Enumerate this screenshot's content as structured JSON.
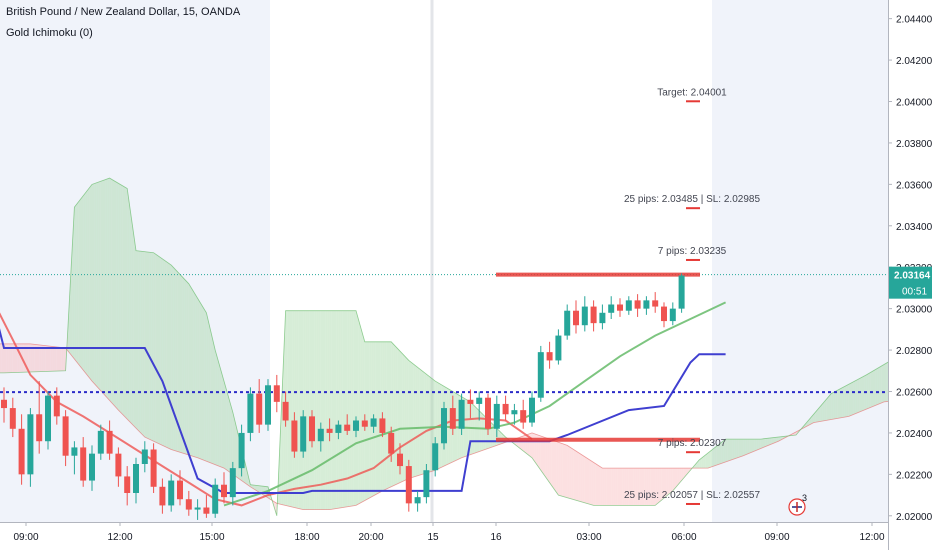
{
  "header": {
    "title": "British Pound / New Zealand Dollar, 15, OANDA",
    "indicator": "Gold Ichimoku (0)"
  },
  "colors": {
    "bull": "#26a69a",
    "bear": "#ef5350",
    "kijun": "#3f3fd0",
    "tenkan": "#ef5350",
    "chikou": "#66bb6a",
    "cloud_bull": "#a5d6a7",
    "cloud_bear": "#f8bbbd",
    "level_line": "#2b2bc8",
    "last_price_bg": "#26a69a",
    "marker_line": "#e53935",
    "session_shade": "#f0f3fa"
  },
  "price_axis": {
    "ticks": [
      "2.04400",
      "2.04200",
      "2.04000",
      "2.03800",
      "2.03600",
      "2.03400",
      "2.03200",
      "2.03000",
      "2.02800",
      "2.02600",
      "2.02400",
      "2.02200",
      "2.02000"
    ],
    "last_price": "2.03164",
    "countdown": "00:51"
  },
  "time_axis": {
    "labels": [
      "09:00",
      "12:00",
      "15:00",
      "18:00",
      "20:00",
      "15",
      "16",
      "03:00",
      "06:00",
      "09:00",
      "12:00"
    ]
  },
  "annotations": {
    "target": "Target: 2.04001",
    "pips25_up": "25 pips: 2.03485  |  SL: 2.02985",
    "pips7_up": "7 pips: 2.03235",
    "pips7_down": "7 pips: 2.02307",
    "pips25_down": "25 pips: 2.02057  |  SL: 2.02557"
  },
  "event_badge": "3",
  "chart_data": {
    "type": "candlestick",
    "timeframe": "15",
    "symbol": "GBPNZD",
    "ylim": [
      2.0197,
      2.0449
    ],
    "levels": {
      "horizontal_dotted": 2.02597,
      "last_price": 2.03164,
      "target": 2.04001,
      "pips25_up": 2.03485,
      "pips7_up": 2.03235,
      "pips7_down": 2.02307,
      "pips25_down": 2.02057,
      "signal_high": 2.03164,
      "signal_low": 2.02367
    },
    "candles": [
      [
        2.0256,
        2.0262,
        2.0245,
        2.0252
      ],
      [
        2.0252,
        2.0257,
        2.0238,
        2.0242
      ],
      [
        2.0242,
        2.0249,
        2.0215,
        2.022
      ],
      [
        2.022,
        2.0252,
        2.0214,
        2.0249
      ],
      [
        2.0249,
        2.0265,
        2.023,
        2.0236
      ],
      [
        2.0236,
        2.026,
        2.0232,
        2.0258
      ],
      [
        2.0258,
        2.0262,
        2.0244,
        2.0248
      ],
      [
        2.0248,
        2.0251,
        2.0224,
        2.0229
      ],
      [
        2.0229,
        2.0236,
        2.022,
        2.0233
      ],
      [
        2.0233,
        2.0238,
        2.0214,
        2.0217
      ],
      [
        2.0217,
        2.0234,
        2.0212,
        2.023
      ],
      [
        2.023,
        2.0244,
        2.0227,
        2.0241
      ],
      [
        2.0241,
        2.0246,
        2.0227,
        2.023
      ],
      [
        2.023,
        2.0233,
        2.0214,
        2.0219
      ],
      [
        2.0219,
        2.0224,
        2.0205,
        2.0211
      ],
      [
        2.0211,
        2.0228,
        2.0206,
        2.0225
      ],
      [
        2.0225,
        2.0236,
        2.0221,
        2.0232
      ],
      [
        2.0232,
        2.0235,
        2.0211,
        2.0214
      ],
      [
        2.0214,
        2.0218,
        2.0201,
        2.0205
      ],
      [
        2.0205,
        2.022,
        2.0202,
        2.0217
      ],
      [
        2.0217,
        2.0222,
        2.0205,
        2.0208
      ],
      [
        2.0208,
        2.0212,
        2.02,
        2.0203
      ],
      [
        2.0203,
        2.0208,
        2.0198,
        2.0204
      ],
      [
        2.0204,
        2.021,
        2.0199,
        2.0201
      ],
      [
        2.0201,
        2.0218,
        2.0199,
        2.0215
      ],
      [
        2.0215,
        2.0221,
        2.0206,
        2.0209
      ],
      [
        2.0209,
        2.0226,
        2.0205,
        2.0223
      ],
      [
        2.0223,
        2.0244,
        2.0219,
        2.024
      ],
      [
        2.024,
        2.0262,
        2.0236,
        2.0259
      ],
      [
        2.0259,
        2.0266,
        2.024,
        2.0244
      ],
      [
        2.0244,
        2.0266,
        2.0241,
        2.0263
      ],
      [
        2.0263,
        2.0268,
        2.025,
        2.0255
      ],
      [
        2.0255,
        2.026,
        2.0243,
        2.0246
      ],
      [
        2.0246,
        2.025,
        2.0228,
        2.0231
      ],
      [
        2.0231,
        2.0251,
        2.0228,
        2.0248
      ],
      [
        2.0248,
        2.0251,
        2.0233,
        2.0236
      ],
      [
        2.0236,
        2.0245,
        2.0231,
        2.0242
      ],
      [
        2.0242,
        2.0247,
        2.0236,
        2.024
      ],
      [
        2.024,
        2.0246,
        2.0237,
        2.0244
      ],
      [
        2.0244,
        2.0249,
        2.0239,
        2.0241
      ],
      [
        2.0241,
        2.0248,
        2.0238,
        2.0246
      ],
      [
        2.0246,
        2.0249,
        2.0241,
        2.0243
      ],
      [
        2.0243,
        2.0249,
        2.024,
        2.0247
      ],
      [
        2.0247,
        2.025,
        2.0238,
        2.024
      ],
      [
        2.024,
        2.0243,
        2.0226,
        2.023
      ],
      [
        2.023,
        2.0235,
        2.022,
        2.0224
      ],
      [
        2.0224,
        2.0227,
        2.0202,
        2.0206
      ],
      [
        2.0206,
        2.0212,
        2.0202,
        2.0209
      ],
      [
        2.0209,
        2.0225,
        2.0206,
        2.0222
      ],
      [
        2.0222,
        2.0238,
        2.0219,
        2.0235
      ],
      [
        2.0235,
        2.0255,
        2.0232,
        2.0252
      ],
      [
        2.0252,
        2.0258,
        2.0239,
        2.0242
      ],
      [
        2.0242,
        2.0259,
        2.0239,
        2.0256
      ],
      [
        2.0256,
        2.0261,
        2.0247,
        2.0254
      ],
      [
        2.0254,
        2.026,
        2.0246,
        2.0257
      ],
      [
        2.0257,
        2.0259,
        2.0239,
        2.0242
      ],
      [
        2.0242,
        2.0258,
        2.0238,
        2.0254
      ],
      [
        2.0254,
        2.0258,
        2.0246,
        2.0249
      ],
      [
        2.0249,
        2.0254,
        2.0244,
        2.0251
      ],
      [
        2.0251,
        2.0256,
        2.0242,
        2.0245
      ],
      [
        2.0245,
        2.026,
        2.0243,
        2.0257
      ],
      [
        2.0257,
        2.0282,
        2.0255,
        2.0279
      ],
      [
        2.0279,
        2.0284,
        2.0271,
        2.0275
      ],
      [
        2.0275,
        2.029,
        2.0273,
        2.0287
      ],
      [
        2.0287,
        2.0302,
        2.0285,
        2.0299
      ],
      [
        2.0299,
        2.0304,
        2.0288,
        2.0292
      ],
      [
        2.0292,
        2.0306,
        2.0289,
        2.0301
      ],
      [
        2.0301,
        2.0304,
        2.0289,
        2.0293
      ],
      [
        2.0293,
        2.0302,
        2.029,
        2.0298
      ],
      [
        2.0298,
        2.0306,
        2.0295,
        2.0302
      ],
      [
        2.0302,
        2.0305,
        2.0296,
        2.0299
      ],
      [
        2.0299,
        2.0306,
        2.0297,
        2.0304
      ],
      [
        2.0304,
        2.0307,
        2.0296,
        2.03
      ],
      [
        2.03,
        2.0306,
        2.0297,
        2.0304
      ],
      [
        2.0304,
        2.0308,
        2.0298,
        2.0301
      ],
      [
        2.0301,
        2.0303,
        2.0291,
        2.0294
      ],
      [
        2.0294,
        2.0303,
        2.0292,
        2.03
      ],
      [
        2.03,
        2.0317,
        2.0298,
        2.0316
      ]
    ],
    "kijun": [
      [
        -4,
        2.0331
      ],
      [
        -3,
        2.0331
      ],
      [
        0,
        2.0281
      ],
      [
        7,
        2.0281
      ],
      [
        16,
        2.0281
      ],
      [
        18,
        2.0265
      ],
      [
        22,
        2.0218
      ],
      [
        25,
        2.0211
      ],
      [
        34,
        2.0211
      ],
      [
        35,
        2.0212
      ],
      [
        52,
        2.0212
      ],
      [
        53,
        2.0236
      ],
      [
        62,
        2.0236
      ],
      [
        64,
        2.0239
      ],
      [
        71,
        2.0251
      ],
      [
        75,
        2.0253
      ],
      [
        78,
        2.0274
      ],
      [
        79,
        2.0278
      ],
      [
        82,
        2.0278
      ]
    ],
    "tenkan": [
      [
        -4,
        2.032
      ],
      [
        -2,
        2.031
      ],
      [
        1,
        2.0285
      ],
      [
        3,
        2.0268
      ],
      [
        6,
        2.0255
      ],
      [
        9,
        2.0248
      ],
      [
        12,
        2.024
      ],
      [
        15,
        2.0232
      ],
      [
        18,
        2.0224
      ],
      [
        21,
        2.0216
      ],
      [
        24,
        2.0208
      ],
      [
        27,
        2.0205
      ],
      [
        30,
        2.021
      ],
      [
        33,
        2.0213
      ],
      [
        36,
        2.0215
      ],
      [
        39,
        2.0218
      ],
      [
        42,
        2.0223
      ],
      [
        45,
        2.0233
      ],
      [
        48,
        2.0241
      ],
      [
        51,
        2.0246
      ],
      [
        54,
        2.0247
      ],
      [
        57,
        2.0246
      ],
      [
        60,
        2.0237
      ]
    ],
    "chikou_approx": [
      [
        25,
        2.0205
      ],
      [
        30,
        2.0212
      ],
      [
        35,
        2.0222
      ],
      [
        40,
        2.0235
      ],
      [
        45,
        2.0242
      ],
      [
        50,
        2.0243
      ],
      [
        55,
        2.0242
      ],
      [
        58,
        2.0245
      ],
      [
        62,
        2.0253
      ],
      [
        66,
        2.0265
      ],
      [
        70,
        2.0277
      ],
      [
        74,
        2.0287
      ],
      [
        78,
        2.0295
      ],
      [
        82,
        2.0303
      ]
    ],
    "cloud_span_a": [
      [
        -4,
        2.0283
      ],
      [
        3,
        2.0283
      ],
      [
        7,
        2.0281
      ],
      [
        10,
        2.0265
      ],
      [
        13,
        2.0251
      ],
      [
        16,
        2.0238
      ],
      [
        19,
        2.0232
      ],
      [
        22,
        2.0228
      ],
      [
        25,
        2.0223
      ],
      [
        28,
        2.0214
      ],
      [
        31,
        2.0206
      ],
      [
        34,
        2.0203
      ],
      [
        37,
        2.0203
      ],
      [
        40,
        2.0205
      ],
      [
        43,
        2.0212
      ],
      [
        46,
        2.0218
      ],
      [
        49,
        2.0222
      ],
      [
        52,
        2.0228
      ],
      [
        56,
        2.0234
      ],
      [
        60,
        2.024
      ],
      [
        64,
        2.0234
      ],
      [
        68,
        2.0223
      ],
      [
        72,
        2.0223
      ],
      [
        76,
        2.0223
      ],
      [
        80,
        2.0223
      ],
      [
        84,
        2.0229
      ],
      [
        88,
        2.0236
      ],
      [
        92,
        2.0245
      ],
      [
        96,
        2.0248
      ],
      [
        100,
        2.0255
      ],
      [
        104,
        2.0257
      ],
      [
        109,
        2.0257
      ]
    ],
    "cloud_span_b": [
      [
        -4,
        2.0269
      ],
      [
        0,
        2.0269
      ],
      [
        7,
        2.027
      ],
      [
        8,
        2.0349
      ],
      [
        10,
        2.036
      ],
      [
        12,
        2.0363
      ],
      [
        14,
        2.0358
      ],
      [
        15,
        2.0328
      ],
      [
        17,
        2.0327
      ],
      [
        19,
        2.0321
      ],
      [
        21,
        2.0312
      ],
      [
        23,
        2.0298
      ],
      [
        24,
        2.028
      ],
      [
        26,
        2.025
      ],
      [
        28,
        2.0215
      ],
      [
        30,
        2.0214
      ],
      [
        31,
        2.02
      ],
      [
        32,
        2.0299
      ],
      [
        35,
        2.0299
      ],
      [
        40,
        2.0299
      ],
      [
        41,
        2.0284
      ],
      [
        44,
        2.0284
      ],
      [
        46,
        2.0275
      ],
      [
        49,
        2.0265
      ],
      [
        51,
        2.026
      ],
      [
        53,
        2.0255
      ],
      [
        57,
        2.0238
      ],
      [
        60,
        2.0228
      ],
      [
        63,
        2.021
      ],
      [
        67,
        2.0205
      ],
      [
        70,
        2.0205
      ],
      [
        74,
        2.0205
      ],
      [
        76,
        2.0212
      ],
      [
        79,
        2.0227
      ],
      [
        82,
        2.0237
      ],
      [
        86,
        2.0237
      ],
      [
        90,
        2.0239
      ],
      [
        94,
        2.0259
      ],
      [
        98,
        2.0268
      ],
      [
        102,
        2.0278
      ],
      [
        106,
        2.0287
      ],
      [
        109,
        2.0288
      ]
    ]
  }
}
